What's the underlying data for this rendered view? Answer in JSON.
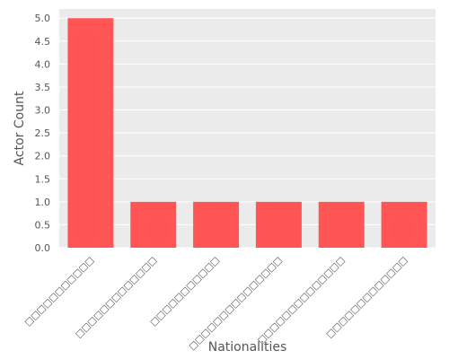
{
  "chart_data": {
    "type": "bar",
    "title": "",
    "xlabel": "Nationalities",
    "ylabel": "Actor Count",
    "categories": [
      "□□□□□□□□□□□",
      "□□□□□□□□□□□□□",
      "□□□□□□□□□□□",
      "□□□□□□□□□□□□□□□",
      "□□□□□□□□□□□□□□",
      "□□□□□□□□□□□□□"
    ],
    "values": [
      5,
      1,
      1,
      1,
      1,
      1
    ],
    "ylim": [
      0,
      5.2
    ],
    "yticks": [
      "0.0",
      "0.5",
      "1.0",
      "1.5",
      "2.0",
      "2.5",
      "3.0",
      "3.5",
      "4.0",
      "4.5",
      "5.0"
    ],
    "grid": true,
    "bar_color": "#ff5555",
    "background_color": "#ebebeb",
    "grid_color": "#ffffff"
  }
}
